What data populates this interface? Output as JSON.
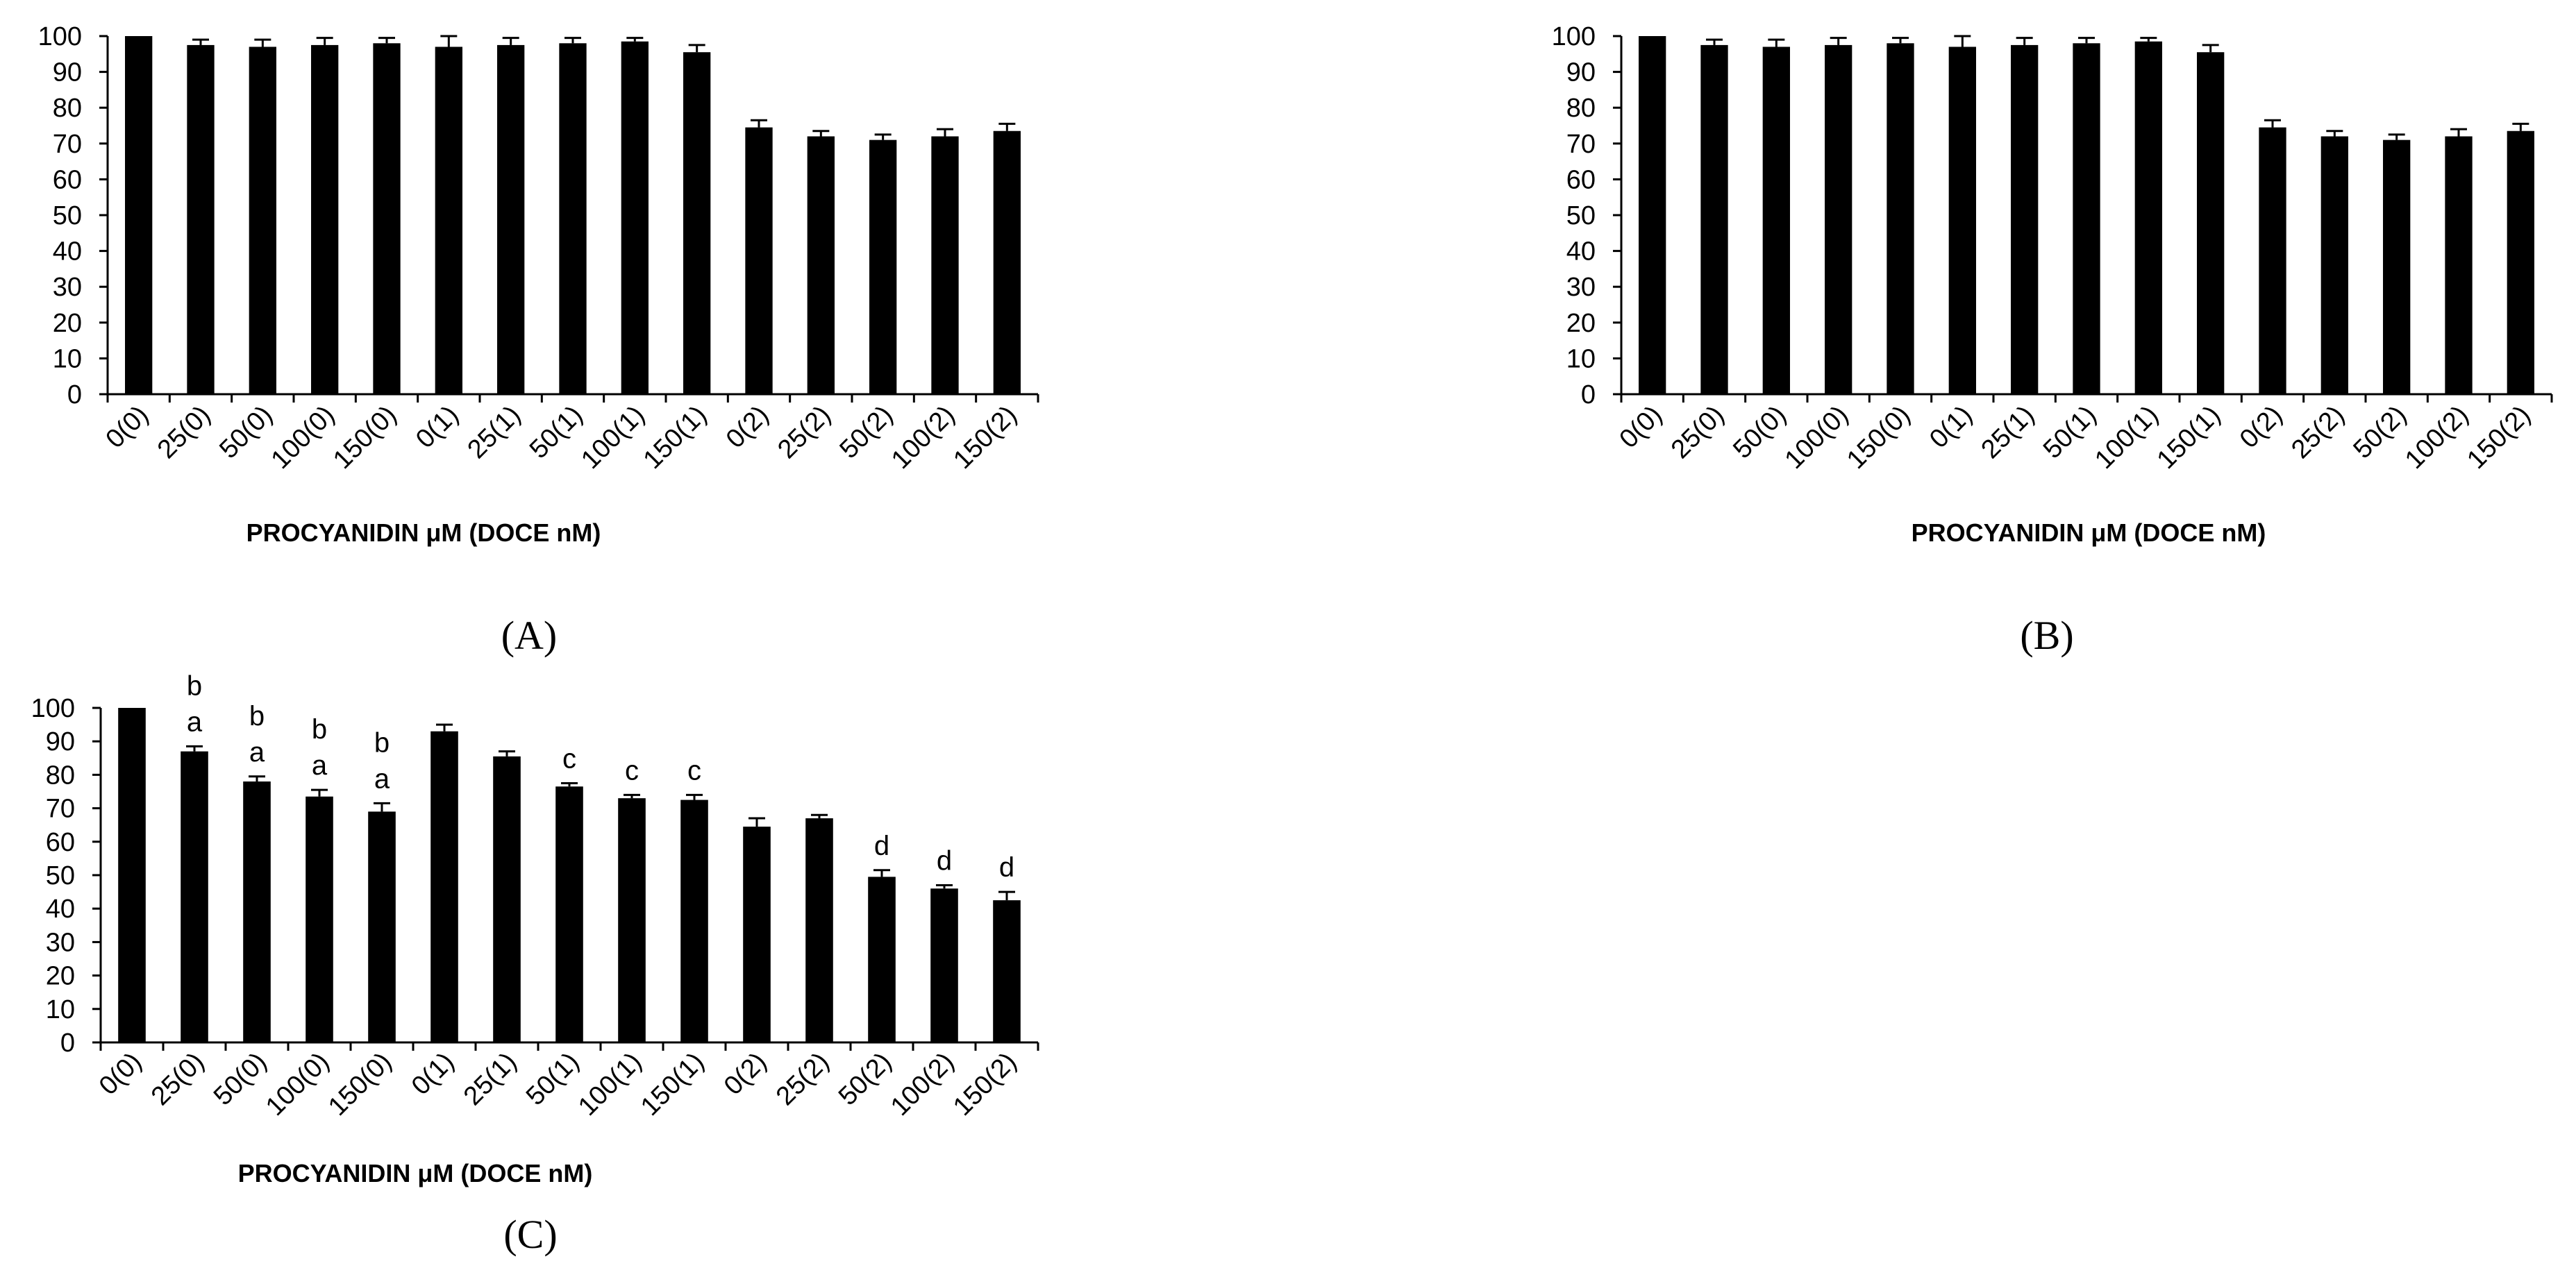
{
  "chart_data": [
    {
      "type": "bar",
      "panel_label": "(A)",
      "xlabel": "PROCYANIDIN μM (DOCE nM)",
      "ylabel": "",
      "ylim": [
        0,
        100
      ],
      "yticks": [
        0,
        10,
        20,
        30,
        40,
        50,
        60,
        70,
        80,
        90,
        100
      ],
      "grid": false,
      "categories": [
        "0(0)",
        "25(0)",
        "50(0)",
        "100(0)",
        "150(0)",
        "0(1)",
        "25(1)",
        "50(1)",
        "100(1)",
        "150(1)",
        "0(2)",
        "25(2)",
        "50(2)",
        "100(2)",
        "150(2)"
      ],
      "values": [
        100,
        97.5,
        97,
        97.5,
        98,
        97,
        97.5,
        98,
        98.5,
        95.5,
        74.5,
        72,
        71,
        72,
        73.5
      ],
      "errors": [
        0,
        1.5,
        2,
        2,
        1.5,
        3,
        2,
        1.5,
        1,
        2,
        2,
        1.5,
        1.5,
        2,
        2
      ],
      "sig_labels": [
        "",
        "",
        "",
        "",
        "",
        "",
        "",
        "",
        "",
        "",
        "",
        "",
        "",
        "",
        ""
      ],
      "color": "#000000"
    },
    {
      "type": "bar",
      "panel_label": "(B)",
      "xlabel": "PROCYANIDIN μM (DOCE nM)",
      "ylabel": "",
      "ylim": [
        0,
        100
      ],
      "yticks": [
        0,
        10,
        20,
        30,
        40,
        50,
        60,
        70,
        80,
        90,
        100
      ],
      "grid": false,
      "categories": [
        "0(0)",
        "25(0)",
        "50(0)",
        "100(0)",
        "150(0)",
        "0(1)",
        "25(1)",
        "50(1)",
        "100(1)",
        "150(1)",
        "0(2)",
        "25(2)",
        "50(2)",
        "100(2)",
        "150(2)"
      ],
      "values": [
        100,
        97.5,
        97,
        97.5,
        98,
        97,
        97.5,
        98,
        98.5,
        95.5,
        74.5,
        72,
        71,
        72,
        73.5
      ],
      "errors": [
        0,
        1.5,
        2,
        2,
        1.5,
        3,
        2,
        1.5,
        1,
        2,
        2,
        1.5,
        1.5,
        2,
        2
      ],
      "sig_labels": [
        "",
        "",
        "",
        "",
        "",
        "",
        "",
        "",
        "",
        "",
        "",
        "",
        "",
        "",
        ""
      ],
      "color": "#000000"
    },
    {
      "type": "bar",
      "panel_label": "(C)",
      "xlabel": "PROCYANIDIN μM (DOCE nM)",
      "ylabel": "",
      "ylim": [
        0,
        100
      ],
      "yticks": [
        0,
        10,
        20,
        30,
        40,
        50,
        60,
        70,
        80,
        90,
        100
      ],
      "grid": false,
      "categories": [
        "0(0)",
        "25(0)",
        "50(0)",
        "100(0)",
        "150(0)",
        "0(1)",
        "25(1)",
        "50(1)",
        "100(1)",
        "150(1)",
        "0(2)",
        "25(2)",
        "50(2)",
        "100(2)",
        "150(2)"
      ],
      "values": [
        100,
        87,
        78,
        73.5,
        69,
        93,
        85.5,
        76.5,
        73,
        72.5,
        64.5,
        67,
        49.5,
        46,
        42.5
      ],
      "errors": [
        0,
        1.5,
        1.5,
        2,
        2.5,
        2,
        1.5,
        1,
        1,
        1.5,
        2.5,
        1,
        2,
        1,
        2.5
      ],
      "sig_labels": [
        "",
        "b a",
        "b a",
        "b a",
        "b a",
        "",
        "",
        "c",
        "c",
        "c",
        "",
        "",
        "d",
        "d",
        "d"
      ],
      "color": "#000000"
    }
  ]
}
